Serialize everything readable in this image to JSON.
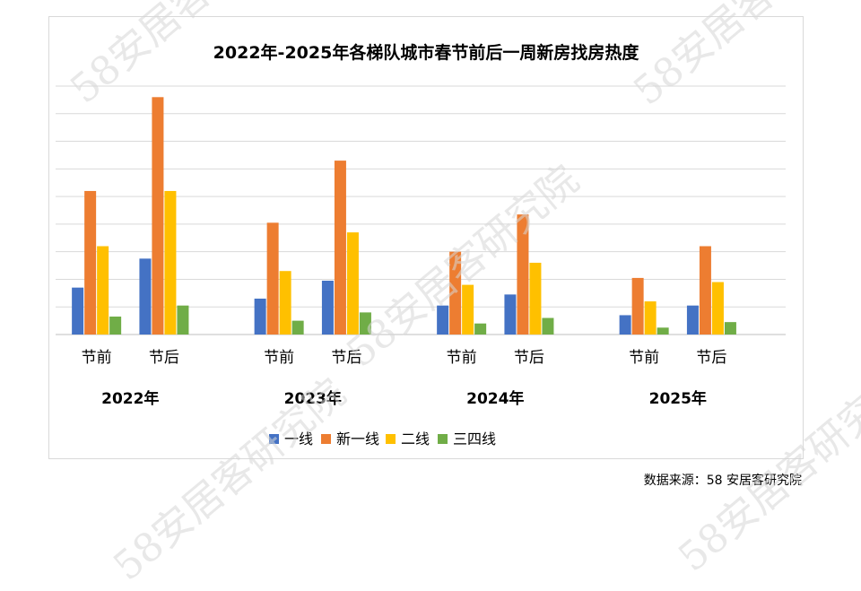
{
  "chart_data": {
    "type": "bar",
    "title": "2022年-2025年各梯队城市春节前后一周新房找房热度",
    "xlabel": "",
    "ylabel": "",
    "ylim": [
      0,
      9
    ],
    "gridlines": 9,
    "y_axis_labels_visible": false,
    "groups": [
      {
        "year": "2022年",
        "periods": [
          "节前",
          "节后"
        ]
      },
      {
        "year": "2023年",
        "periods": [
          "节前",
          "节后"
        ]
      },
      {
        "year": "2024年",
        "periods": [
          "节前",
          "节后"
        ]
      },
      {
        "year": "2025年",
        "periods": [
          "节前",
          "节后"
        ]
      }
    ],
    "categories": [
      "2022年 节前",
      "2022年 节后",
      "2023年 节前",
      "2023年 节后",
      "2024年 节前",
      "2024年 节后",
      "2025年 节前",
      "2025年 节后"
    ],
    "series": [
      {
        "name": "一线",
        "color": "#4472C4",
        "values": [
          1.7,
          2.75,
          1.3,
          1.95,
          1.05,
          1.45,
          0.7,
          1.05
        ]
      },
      {
        "name": "新一线",
        "color": "#ED7D31",
        "values": [
          5.2,
          8.6,
          4.05,
          6.3,
          3.0,
          4.35,
          2.05,
          3.2
        ]
      },
      {
        "name": "二线",
        "color": "#FFC000",
        "values": [
          3.2,
          5.2,
          2.3,
          3.7,
          1.8,
          2.6,
          1.2,
          1.9
        ]
      },
      {
        "name": "三四线",
        "color": "#70AD47",
        "values": [
          0.65,
          1.05,
          0.5,
          0.8,
          0.4,
          0.6,
          0.25,
          0.45
        ]
      }
    ],
    "legend_position": "bottom",
    "grid": true
  },
  "source_text": "数据来源：58 安居客研究院",
  "watermark_text": "58安居客研究院"
}
